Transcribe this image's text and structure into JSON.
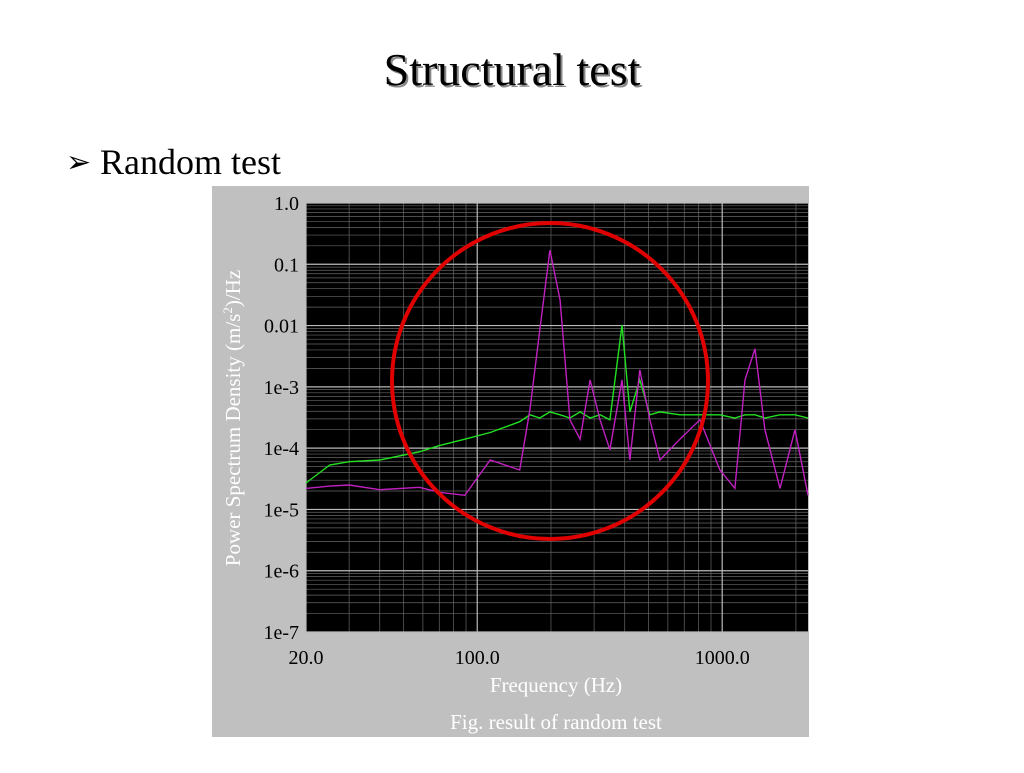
{
  "slide": {
    "title": "Structural test",
    "bullet": "Random test"
  },
  "chart_data": {
    "type": "line",
    "caption": "Fig. result of random test",
    "x_label": "Frequency (Hz)",
    "y_label": {
      "text": "Power Spectrum Density (m/s",
      "superscript": "2",
      "end": ")/Hz"
    },
    "x_scale": "log",
    "y_scale": "log",
    "grid": true,
    "xlim": [
      20,
      2240
    ],
    "ylim": [
      1e-07,
      1
    ],
    "xticks": [
      {
        "value": 20,
        "label": "20.0"
      },
      {
        "value": 100,
        "label": "100.0"
      },
      {
        "value": 1000,
        "label": "1000.0"
      }
    ],
    "yticks": [
      {
        "value": 1,
        "label": "1.0"
      },
      0.1,
      0.01,
      {
        "value": 0.001,
        "label": "1e-3"
      },
      {
        "value": 0.0001,
        "label": "1e-4"
      },
      {
        "value": 1e-05,
        "label": "1e-5"
      },
      {
        "value": 1e-06,
        "label": "1e-6"
      },
      {
        "value": 1e-07,
        "label": "1e-7"
      }
    ],
    "x": [
      20,
      25,
      30,
      40,
      58,
      70,
      89,
      113,
      149,
      164,
      180,
      198,
      218,
      239,
      263,
      289,
      317,
      348,
      390,
      420,
      461,
      507,
      557,
      672,
      811,
      979,
      1127,
      1239,
      1361,
      1494,
      1722,
      1982,
      2240
    ],
    "series": [
      {
        "color": "#22e022",
        "values": [
          2.7e-05,
          5.3e-05,
          6e-05,
          6.4e-05,
          8.7e-05,
          0.00011,
          0.00014,
          0.00018,
          0.00027,
          0.00035,
          0.00031,
          0.00039,
          0.00035,
          0.00031,
          0.00039,
          0.00031,
          0.00035,
          0.00029,
          0.0102,
          0.00039,
          0.0013,
          0.00035,
          0.00039,
          0.00035,
          0.00035,
          0.00035,
          0.00031,
          0.00035,
          0.00035,
          0.00031,
          0.00035,
          0.00035,
          0.00031
        ]
      },
      {
        "color": "#c020c0",
        "values": [
          2.2e-05,
          2.4e-05,
          2.5e-05,
          2.1e-05,
          2.3e-05,
          1.9e-05,
          1.7e-05,
          6.4e-05,
          4.4e-05,
          0.00042,
          0.0085,
          0.17,
          0.026,
          0.00029,
          0.00014,
          0.0013,
          0.00029,
          9.4e-05,
          0.0013,
          6.4e-05,
          0.0019,
          0.00029,
          6.4e-05,
          0.00014,
          0.00029,
          4.4e-05,
          2.2e-05,
          0.0013,
          0.0042,
          0.0002,
          2.2e-05,
          0.0002,
          1.7e-05
        ]
      }
    ]
  }
}
